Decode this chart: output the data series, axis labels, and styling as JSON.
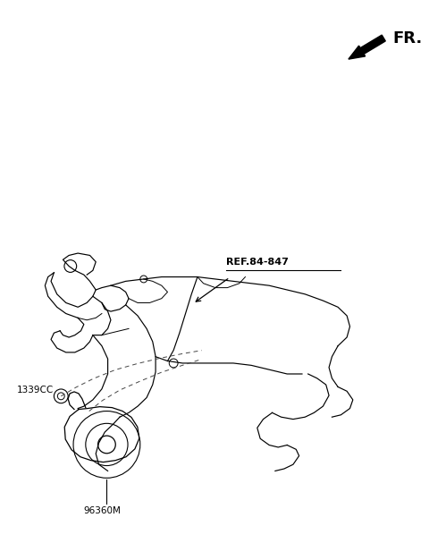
{
  "bg_color": "#ffffff",
  "fr_label": "FR.",
  "ref_label": "REF.84-847",
  "part1_label": "1339CC",
  "part2_label": "96360M",
  "line_color": "#000000",
  "figsize": [
    4.8,
    6.26
  ],
  "dpi": 100
}
